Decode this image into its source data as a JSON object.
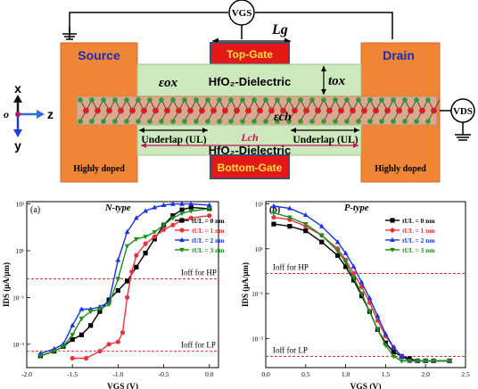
{
  "device": {
    "source": "Source",
    "drain": "Drain",
    "top_gate": "Top-Gate",
    "bottom_gate": "Bottom-Gate",
    "dielectric_top": "HfO₂-Dielectric",
    "dielectric_bottom": "HfO₂-Dielectric",
    "highly_doped_left": "Highly doped",
    "highly_doped_right": "Highly doped",
    "vgs": "VGS",
    "vds": "VDS",
    "lg": "Lg",
    "eps_ox": "εox",
    "t_ox": "tox",
    "eps_ch": "εch",
    "l_ch": "Lch",
    "underlap_left": "Underlap (UL)",
    "underlap_right": "Underlap (UL)",
    "axes": {
      "x": "x",
      "y": "y",
      "z": "z",
      "o": "o"
    },
    "colors": {
      "contact": "#ef8535",
      "gate": "#e11717",
      "dielectric": "#cde8bd",
      "channel": "#d9a98f",
      "arrow": "#7a1f4e"
    }
  },
  "chart_data": [
    {
      "type": "line",
      "panel": "(a)",
      "title": "N-type",
      "xlabel": "VGS (V)",
      "ylabel": "IDS (μA/μm)",
      "xlim": [
        -2.0,
        0.1
      ],
      "ylim_log10": [
        -4,
        3.1
      ],
      "xticks": [
        "-2.0",
        "-1.5",
        "-1.0",
        "-0.5",
        "0.0"
      ],
      "yticks": [
        "10³",
        "10¹",
        "10⁻¹",
        "10⁻³"
      ],
      "log_y": true,
      "legend_position": "top-right",
      "reference_lines": [
        {
          "label": "Ioff for HP",
          "log10": -0.2
        },
        {
          "label": "Ioff for LP",
          "log10": -3.3
        }
      ],
      "series": [
        {
          "name": "tUL = 0 nm",
          "color": "#000000",
          "marker": "square",
          "x": [
            -1.85,
            -1.7,
            -1.6,
            -1.5,
            -1.4,
            -1.3,
            -1.2,
            -1.1,
            -1.0,
            -0.9,
            -0.8,
            -0.7,
            -0.6,
            -0.5,
            -0.4,
            -0.3,
            -0.2,
            0.0
          ],
          "log10": [
            -3.5,
            -3.3,
            -3.1,
            -2.8,
            -2.6,
            -2.2,
            -1.6,
            -1.1,
            -0.7,
            -0.3,
            0.3,
            0.9,
            1.5,
            2.1,
            2.5,
            2.75,
            2.85,
            2.8
          ]
        },
        {
          "name": "tUL = 1 nm",
          "color": "#e8323c",
          "marker": "circle",
          "x": [
            -1.5,
            -1.35,
            -1.2,
            -1.1,
            -1.0,
            -0.95,
            -0.9,
            -0.85,
            -0.8,
            -0.7,
            -0.6,
            -0.5,
            -0.4,
            -0.3,
            -0.2,
            0.0
          ],
          "log10": [
            -3.6,
            -3.6,
            -3.3,
            -3.0,
            -2.9,
            -2.5,
            -1.0,
            0.1,
            0.8,
            1.3,
            1.6,
            1.9,
            2.1,
            2.3,
            2.4,
            2.5
          ]
        },
        {
          "name": "tUL = 2 nm",
          "color": "#1833e6",
          "marker": "triangle-up",
          "x": [
            -1.85,
            -1.7,
            -1.6,
            -1.5,
            -1.4,
            -1.3,
            -1.2,
            -1.1,
            -1.0,
            -0.9,
            -0.8,
            -0.7,
            -0.6,
            -0.5,
            -0.4,
            -0.3,
            -0.2,
            0.0
          ],
          "log10": [
            -3.4,
            -3.2,
            -3.0,
            -2.2,
            -1.5,
            -1.5,
            -1.4,
            -1.2,
            0.6,
            1.8,
            2.4,
            2.7,
            2.85,
            2.95,
            3.0,
            3.0,
            3.0,
            2.95
          ]
        },
        {
          "name": "tUL = 3 nm",
          "color": "#1a8f1a",
          "marker": "triangle-down",
          "x": [
            -1.85,
            -1.7,
            -1.6,
            -1.5,
            -1.4,
            -1.3,
            -1.2,
            -1.1,
            -1.0,
            -0.9,
            -0.8,
            -0.7,
            -0.6,
            -0.5,
            -0.4,
            -0.3,
            -0.2,
            0.0
          ],
          "log10": [
            -3.5,
            -3.3,
            -3.1,
            -2.6,
            -1.9,
            -1.6,
            -1.5,
            -1.3,
            -0.2,
            1.2,
            1.5,
            1.6,
            1.8,
            2.1,
            2.4,
            2.6,
            2.7,
            2.8
          ]
        }
      ]
    },
    {
      "type": "line",
      "panel": "(b)",
      "title": "P-type",
      "xlabel": "VGS (V)",
      "ylabel": "IDS (μA/μm)",
      "xlim": [
        0.0,
        2.5
      ],
      "ylim_log10": [
        -4.3,
        3.1
      ],
      "xticks": [
        "0.0",
        "0.5",
        "1.0",
        "1.5",
        "2.0",
        "2.5"
      ],
      "yticks": [
        "10³",
        "10¹",
        "10⁻¹",
        "10⁻³"
      ],
      "log_y": true,
      "legend_position": "top-right",
      "reference_lines": [
        {
          "label": "Ioff for HP",
          "log10": -0.1
        },
        {
          "label": "Ioff for LP",
          "log10": -3.8
        }
      ],
      "series": [
        {
          "name": "tUL = 0 nm",
          "color": "#000000",
          "marker": "square",
          "x": [
            0.1,
            0.3,
            0.5,
            0.7,
            0.9,
            1.0,
            1.1,
            1.2,
            1.3,
            1.4,
            1.5,
            1.6,
            1.7,
            1.8,
            1.9,
            2.0,
            2.1,
            2.3
          ],
          "log10": [
            2.1,
            2.0,
            1.8,
            1.3,
            0.7,
            0.2,
            -0.4,
            -1.1,
            -1.8,
            -2.6,
            -3.2,
            -3.6,
            -3.8,
            -3.9,
            -4.0,
            -4.0,
            -4.0,
            -4.0
          ]
        },
        {
          "name": "tUL = 1 nm",
          "color": "#e8323c",
          "marker": "circle",
          "x": [
            0.1,
            0.3,
            0.5,
            0.7,
            0.9,
            1.0,
            1.1,
            1.2,
            1.3,
            1.4,
            1.5,
            1.6,
            1.7,
            1.8,
            1.9,
            2.0,
            2.1,
            2.3
          ],
          "log10": [
            2.4,
            2.3,
            2.0,
            1.6,
            1.0,
            0.5,
            -0.1,
            -0.7,
            -1.4,
            -2.2,
            -2.9,
            -3.4,
            -3.8,
            -4.0,
            -4.0,
            -4.0,
            -4.0,
            -4.0
          ]
        },
        {
          "name": "tUL = 2 nm",
          "color": "#1833e6",
          "marker": "triangle-up",
          "x": [
            0.1,
            0.3,
            0.5,
            0.7,
            0.9,
            1.0,
            1.1,
            1.2,
            1.3,
            1.4,
            1.5,
            1.6,
            1.7,
            1.8,
            1.9,
            2.0,
            2.1,
            2.3
          ],
          "log10": [
            2.9,
            2.8,
            2.5,
            2.0,
            1.3,
            0.8,
            0.2,
            -0.5,
            -1.2,
            -2.0,
            -2.8,
            -3.4,
            -3.8,
            -4.0,
            -4.0,
            -4.0,
            -4.0,
            -4.0
          ]
        },
        {
          "name": "tUL = 3 nm",
          "color": "#1a8f1a",
          "marker": "triangle-down",
          "x": [
            0.1,
            0.3,
            0.5,
            0.7,
            0.9,
            1.0,
            1.1,
            1.2,
            1.3,
            1.4,
            1.5,
            1.6,
            1.7,
            1.8,
            1.9,
            2.0,
            2.1,
            2.3
          ],
          "log10": [
            2.6,
            2.4,
            2.1,
            1.6,
            0.9,
            0.4,
            -0.3,
            -1.0,
            -1.8,
            -2.6,
            -3.3,
            -3.8,
            -4.0,
            -4.0,
            -4.0,
            -4.0,
            -4.0,
            -4.0
          ]
        }
      ]
    }
  ]
}
